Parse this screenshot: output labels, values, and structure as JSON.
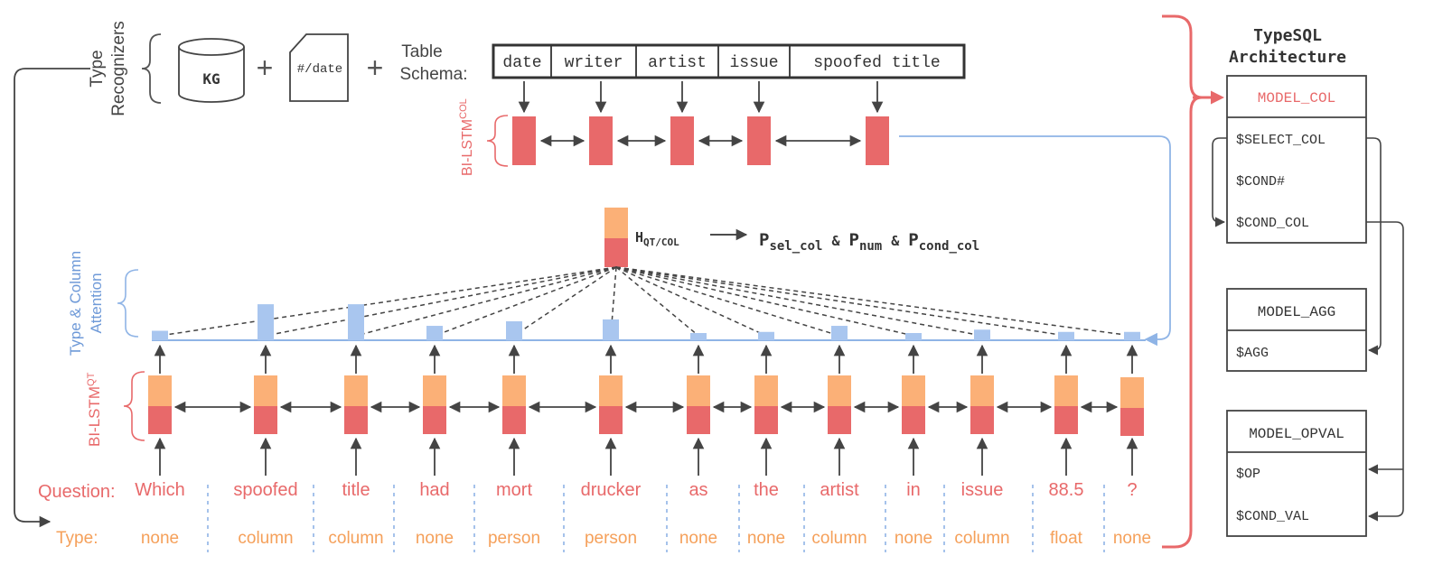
{
  "colors": {
    "red": "#e8696a",
    "red_text": "#e8696a",
    "orange": "#fbb077",
    "orange_text": "#f5a05a",
    "blue": "#8fb4e6",
    "blue_bar": "#a9c6ef",
    "blue_text": "#6f9ad8",
    "gray": "#444444"
  },
  "type_recognizers": {
    "label_line1": "Type",
    "label_line2": "Recognizers",
    "kg": "KG",
    "date_doc": "#/date",
    "plus": "+"
  },
  "table_schema": {
    "label_line1": "Table",
    "label_line2": "Schema:",
    "columns": [
      "date",
      "writer",
      "artist",
      "issue",
      "spoofed title"
    ]
  },
  "bilstm_col": {
    "label": "BI-LSTM",
    "sup": "COL"
  },
  "bilstm_qt": {
    "label": "BI-LSTM",
    "sup": "QT"
  },
  "attention": {
    "label_line1": "Type & Column",
    "label_line2": "Attention"
  },
  "attention_weights": [
    0.25,
    0.95,
    0.95,
    0.38,
    0.5,
    0.55,
    0.18,
    0.22,
    0.38,
    0.18,
    0.28,
    0.22,
    0.22
  ],
  "hqt": {
    "h": "H",
    "h_sub": "QT/COL",
    "p1": "P",
    "p1_sub": "sel_col",
    "amp1": "&",
    "p2": "P",
    "p2_sub": "num",
    "amp2": "&",
    "p3": "P",
    "p3_sub": "cond_col"
  },
  "question": {
    "label": "Question:",
    "words": [
      "Which",
      "spoofed",
      "title",
      "had",
      "mort",
      "drucker",
      "as",
      "the",
      "artist",
      "in",
      "issue",
      "88.5",
      "?"
    ]
  },
  "types": {
    "label": "Type:",
    "values": [
      "none",
      "column",
      "column",
      "none",
      "person",
      "person",
      "none",
      "none",
      "column",
      "none",
      "column",
      "float",
      "none"
    ]
  },
  "architecture": {
    "title_line1": "TypeSQL",
    "title_line2": "Architecture",
    "models": [
      {
        "name": "MODEL_COL",
        "items": [
          "$SELECT_COL",
          "$COND#",
          "$COND_COL"
        ]
      },
      {
        "name": "MODEL_AGG",
        "items": [
          "$AGG"
        ]
      },
      {
        "name": "MODEL_OPVAL",
        "items": [
          "$OP",
          "$COND_VAL"
        ]
      }
    ]
  }
}
